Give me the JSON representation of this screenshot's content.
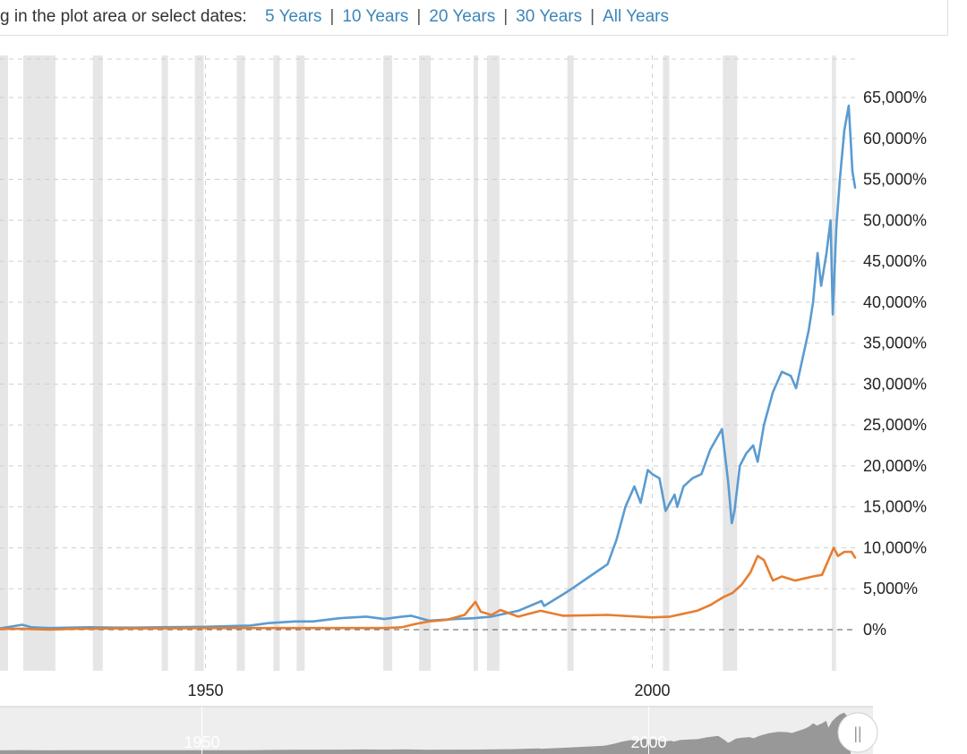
{
  "toolbar": {
    "prompt": "g in the plot area or select dates:",
    "ranges": [
      "5 Years",
      "10 Years",
      "20 Years",
      "30 Years",
      "All Years"
    ]
  },
  "colors": {
    "series_blue": "#5b9bd1",
    "series_orange": "#e67e30",
    "recession_band": "#e6e6e6",
    "grid": "#cfcfcf",
    "navigator_bg": "#eeeeee",
    "navigator_area": "#888888"
  },
  "chart_data": {
    "type": "line",
    "title": "",
    "xlabel": "",
    "ylabel": "",
    "xlim": [
      1927.0,
      2022.7
    ],
    "ylim": [
      0,
      65000
    ],
    "y_ticks": [
      "65,000%",
      "60,000%",
      "55,000%",
      "50,000%",
      "45,000%",
      "40,000%",
      "35,000%",
      "30,000%",
      "25,000%",
      "20,000%",
      "15,000%",
      "10,000%",
      "5,000%",
      "0%"
    ],
    "x_ticks": [
      "1950",
      "2000"
    ],
    "x_tick_values": [
      1950,
      2000
    ],
    "grid": true,
    "recession_shading": [
      [
        1926.8,
        1927.9
      ],
      [
        1929.6,
        1933.2
      ],
      [
        1937.4,
        1938.5
      ],
      [
        1945.1,
        1945.8
      ],
      [
        1948.8,
        1949.8
      ],
      [
        1953.5,
        1954.4
      ],
      [
        1957.6,
        1958.3
      ],
      [
        1960.2,
        1961.1
      ],
      [
        1969.9,
        1970.9
      ],
      [
        1973.9,
        1975.2
      ],
      [
        1980.0,
        1980.5
      ],
      [
        1981.5,
        1982.9
      ],
      [
        1990.5,
        1991.2
      ],
      [
        2001.2,
        2001.9
      ],
      [
        2007.9,
        2009.5
      ],
      [
        2020.1,
        2020.4
      ]
    ],
    "series": [
      {
        "color": "#5b9bd1",
        "x": [
          1927.0,
          1929.5,
          1930.5,
          1932.5,
          1935,
          1937,
          1940,
          1942,
          1945,
          1950,
          1953,
          1955,
          1957,
          1960,
          1962,
          1965,
          1968,
          1970,
          1972,
          1973,
          1975,
          1978,
          1980,
          1982,
          1985,
          1987.6,
          1987.9,
          1990,
          1991,
          1993,
          1995,
          1996,
          1997,
          1998,
          1998.7,
          1999.5,
          2000,
          2000.8,
          2001.5,
          2002.5,
          2002.8,
          2003.5,
          2004.5,
          2005.5,
          2006.5,
          2007.8,
          2008.5,
          2008.9,
          2009.2,
          2009.8,
          2010.5,
          2011.3,
          2011.8,
          2012.5,
          2013.5,
          2014.5,
          2015.5,
          2016.1,
          2016.8,
          2017.5,
          2018.0,
          2018.5,
          2018.9,
          2019.5,
          2019.95,
          2020.2,
          2020.6,
          2021.0,
          2021.5,
          2021.99,
          2022.2,
          2022.4,
          2022.7
        ],
        "y": [
          150,
          600,
          300,
          200,
          250,
          300,
          250,
          250,
          300,
          350,
          450,
          500,
          800,
          1000,
          1000,
          1400,
          1600,
          1300,
          1600,
          1700,
          1100,
          1300,
          1400,
          1600,
          2300,
          3500,
          2900,
          4300,
          5000,
          6500,
          8000,
          11000,
          15000,
          17500,
          15500,
          19500,
          19000,
          18500,
          14500,
          16500,
          15000,
          17500,
          18500,
          19000,
          22000,
          24500,
          18000,
          13000,
          14500,
          20000,
          21500,
          22500,
          20500,
          25000,
          29000,
          31500,
          31000,
          29500,
          33000,
          36500,
          40000,
          46000,
          42000,
          46000,
          50000,
          38500,
          49000,
          55000,
          61000,
          64000,
          60000,
          56000,
          54000
        ]
      },
      {
        "color": "#e67e30",
        "x": [
          1927.0,
          1929.5,
          1932.5,
          1935,
          1940,
          1945,
          1950,
          1955,
          1960,
          1965,
          1970,
          1972,
          1973.5,
          1975,
          1977,
          1979,
          1980.2,
          1980.8,
          1982,
          1983,
          1985,
          1987.5,
          1990,
          1995,
          2000,
          2002,
          2005,
          2006.5,
          2008,
          2009,
          2010,
          2011,
          2011.8,
          2012.5,
          2013.5,
          2014.5,
          2016,
          2018,
          2019,
          2020.3,
          2020.8,
          2021.5,
          2022.3,
          2022.7
        ],
        "y": [
          100,
          120,
          0,
          100,
          150,
          150,
          200,
          200,
          200,
          200,
          200,
          300,
          700,
          1000,
          1200,
          1800,
          3400,
          2200,
          1800,
          2400,
          1600,
          2300,
          1700,
          1800,
          1500,
          1600,
          2300,
          3000,
          4000,
          4500,
          5500,
          7000,
          9000,
          8500,
          6000,
          6500,
          6000,
          6500,
          6700,
          10000,
          9000,
          9500,
          9500,
          8800
        ]
      }
    ]
  },
  "navigator": {
    "tick_labels": [
      "1950",
      "2000"
    ],
    "handle_label": "||"
  }
}
